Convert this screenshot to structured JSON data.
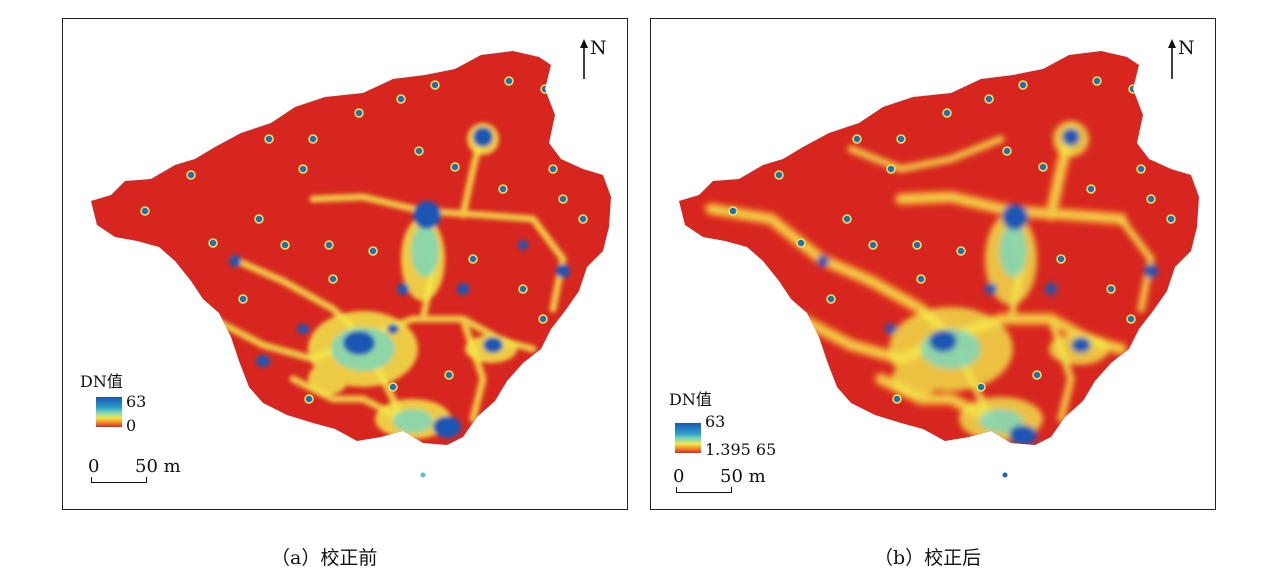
{
  "panels": [
    {
      "id": "a",
      "caption": "（a）校正前",
      "north_label": "N",
      "legend": {
        "title": "DN值",
        "max": "63",
        "min": "0"
      },
      "scalebar": {
        "start": "0",
        "end": "50 m"
      },
      "colors": {
        "low": "#d7261f",
        "mid": "#f2e84a",
        "high": "#1a57b4"
      }
    },
    {
      "id": "b",
      "caption": "（b）校正后",
      "north_label": "N",
      "legend": {
        "title": "DN值",
        "max": "63",
        "min": "1.395 65"
      },
      "scalebar": {
        "start": "0",
        "end": "50 m"
      },
      "colors": {
        "low": "#d7261f",
        "mid": "#f2e84a",
        "high": "#1a57b4"
      }
    }
  ]
}
